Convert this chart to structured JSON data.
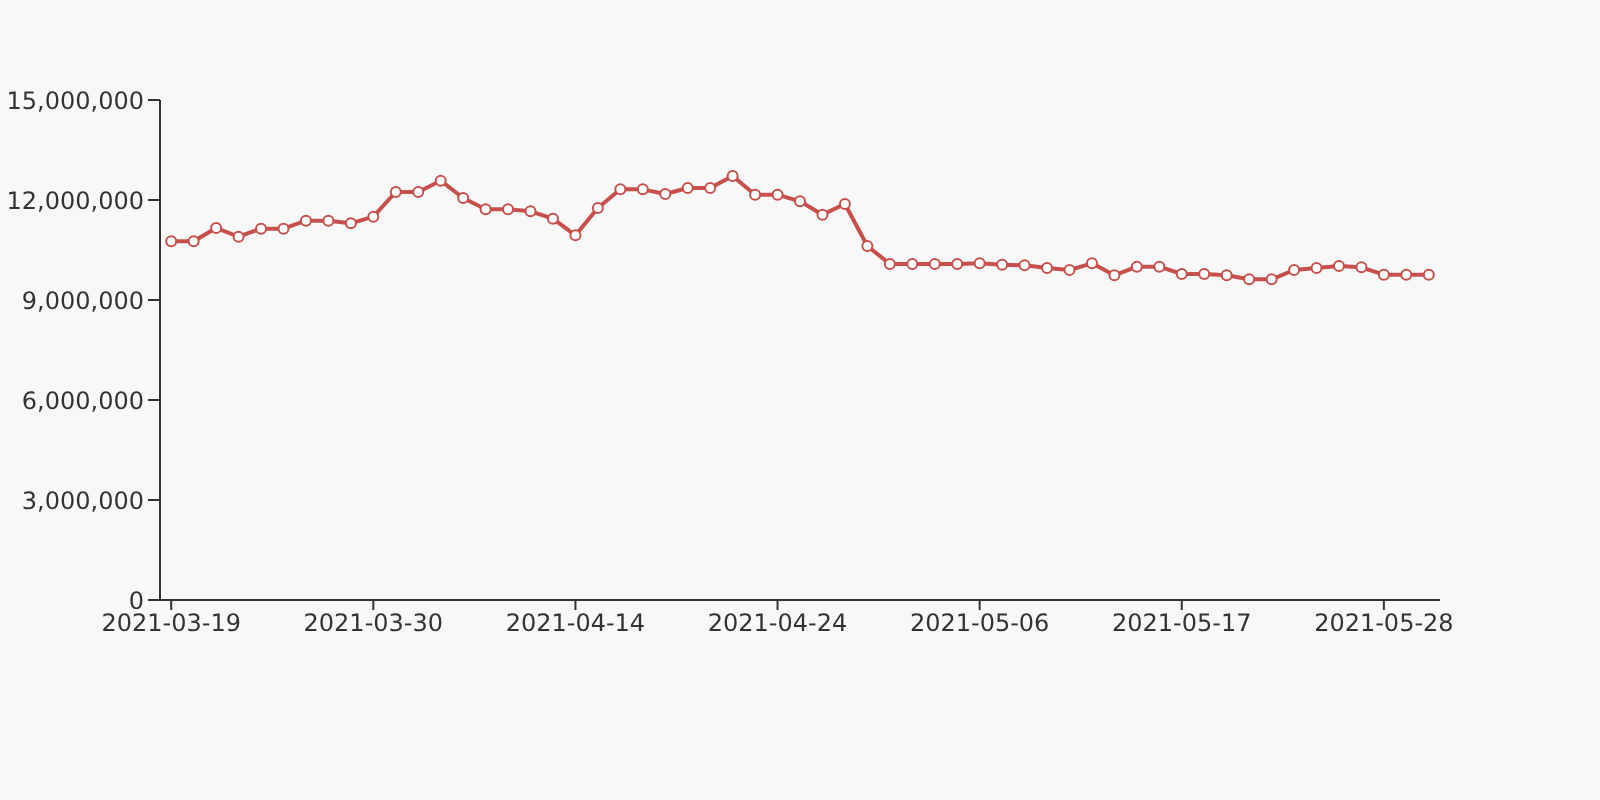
{
  "chart_data": {
    "type": "line",
    "categories": [
      "2021-03-19",
      null,
      null,
      null,
      null,
      null,
      null,
      null,
      null,
      "2021-03-30",
      null,
      null,
      null,
      null,
      null,
      null,
      null,
      null,
      "2021-04-14",
      null,
      null,
      null,
      null,
      null,
      null,
      null,
      null,
      "2021-04-24",
      null,
      null,
      null,
      null,
      null,
      null,
      null,
      null,
      "2021-05-06",
      null,
      null,
      null,
      null,
      null,
      null,
      null,
      null,
      "2021-05-17",
      null,
      null,
      null,
      null,
      null,
      null,
      null,
      null,
      "2021-05-28",
      null,
      null
    ],
    "series": [
      {
        "color": "#c8504c",
        "values": [
          10760000,
          10760000,
          11160000,
          10900000,
          11140000,
          11140000,
          11380000,
          11380000,
          11300000,
          11500000,
          12240000,
          12240000,
          12580000,
          12060000,
          11720000,
          11720000,
          11660000,
          11440000,
          10940000,
          11760000,
          12320000,
          12320000,
          12180000,
          12360000,
          12360000,
          12720000,
          12160000,
          12160000,
          11960000,
          11560000,
          11880000,
          10620000,
          10080000,
          10080000,
          10080000,
          10080000,
          10100000,
          10060000,
          10040000,
          9960000,
          9900000,
          10100000,
          9740000,
          10000000,
          10000000,
          9780000,
          9780000,
          9740000,
          9620000,
          9620000,
          9900000,
          9960000,
          10020000,
          9980000,
          9760000,
          9760000,
          9760000
        ]
      }
    ],
    "ylim": [
      0,
      15000000
    ],
    "yticks": [
      0,
      {
        "value": 3000000,
        "label": "3,000,000"
      },
      {
        "value": 6000000,
        "label": "6,000,000"
      },
      {
        "value": 9000000,
        "label": "9,000,000"
      },
      {
        "value": 12000000,
        "label": "12,000,000"
      },
      {
        "value": 15000000,
        "label": "15,000,000"
      }
    ],
    "grid": false,
    "legend": false,
    "marker": "circle",
    "line_style": "solid"
  }
}
